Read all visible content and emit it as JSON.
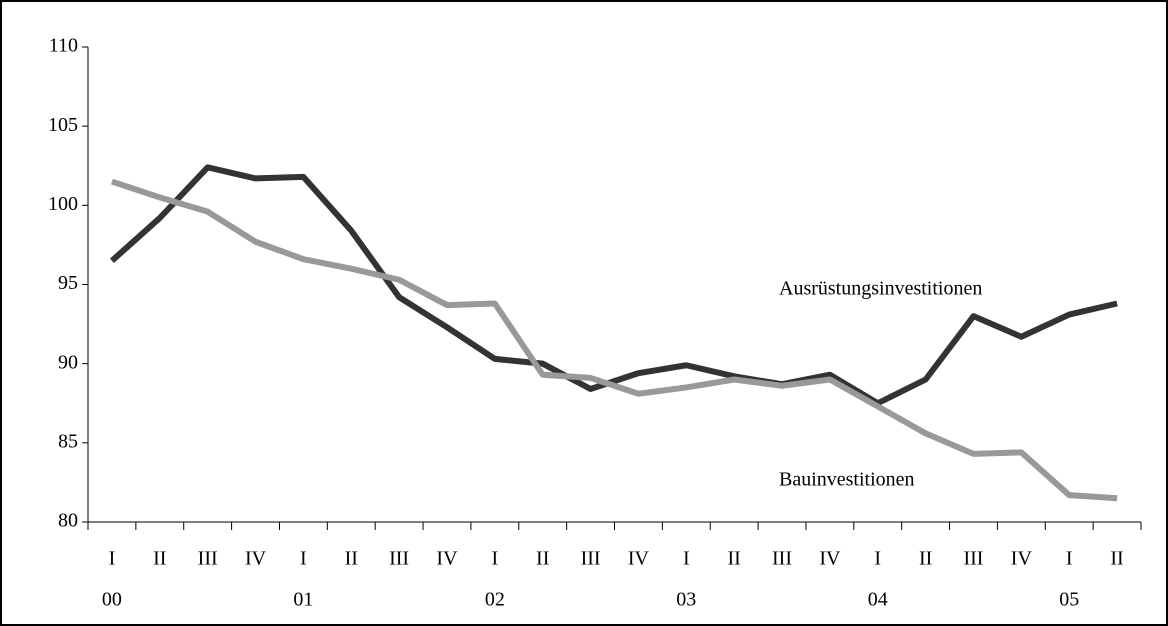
{
  "chart_data": {
    "type": "line",
    "categories": [
      "I",
      "II",
      "III",
      "IV",
      "I",
      "II",
      "III",
      "IV",
      "I",
      "II",
      "III",
      "IV",
      "I",
      "II",
      "III",
      "IV",
      "I",
      "II",
      "III",
      "IV",
      "I",
      "II"
    ],
    "x_groups": [
      "00",
      null,
      null,
      null,
      "01",
      null,
      null,
      null,
      "02",
      null,
      null,
      null,
      "03",
      null,
      null,
      null,
      "04",
      null,
      null,
      null,
      "05",
      null
    ],
    "series": [
      {
        "name": "Ausrüstungsinvestitionen",
        "color": "#333333",
        "values": [
          96.5,
          99.2,
          102.4,
          101.7,
          101.8,
          98.4,
          94.2,
          92.3,
          90.3,
          90.0,
          88.4,
          89.4,
          89.9,
          89.2,
          88.7,
          89.3,
          87.5,
          89.0,
          93.0,
          91.7,
          93.1,
          93.8
        ]
      },
      {
        "name": "Bauinvestitionen",
        "color": "#999999",
        "values": [
          101.5,
          100.5,
          99.6,
          97.7,
          96.6,
          96.0,
          95.3,
          93.7,
          93.8,
          89.3,
          89.1,
          88.1,
          88.5,
          89.0,
          88.6,
          89.0,
          87.3,
          85.6,
          84.3,
          84.4,
          81.7,
          81.5
        ]
      }
    ],
    "ylim": [
      80,
      110
    ],
    "yticks": [
      80,
      85,
      90,
      95,
      100,
      105,
      110
    ]
  }
}
